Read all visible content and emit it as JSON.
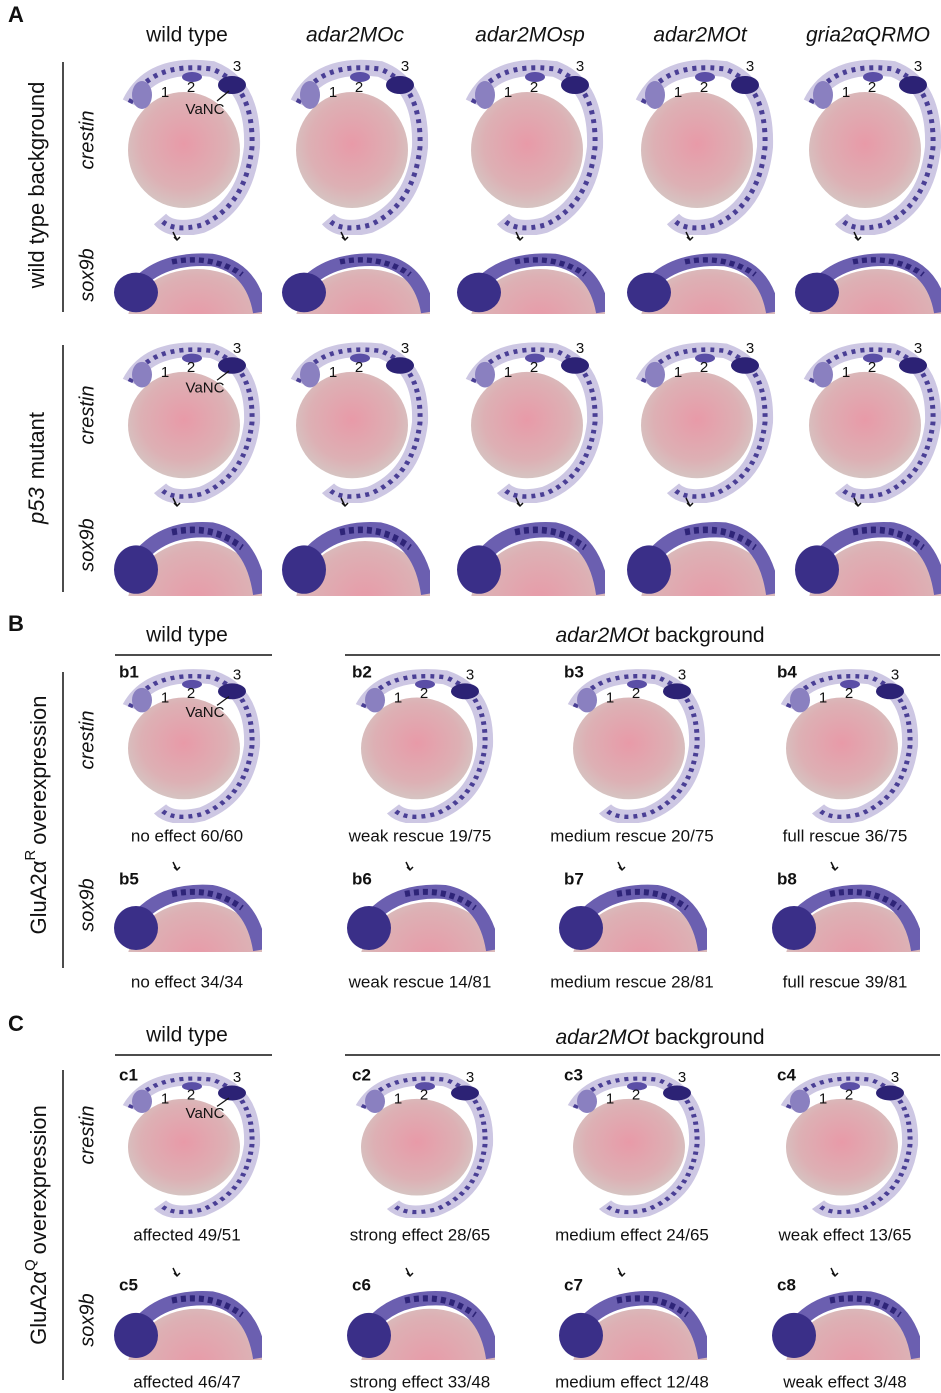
{
  "figure": {
    "markers": {
      "n1": "1",
      "n2": "2",
      "n3": "3",
      "vanc": "VaNC"
    },
    "panel_a": {
      "label": "A",
      "columns": [
        "wild type",
        "adar2MOc",
        "adar2MOsp",
        "adar2MOt",
        "gria2αQRMO"
      ],
      "group_1": "wild type background",
      "group_2": [
        "p53",
        "mutant"
      ],
      "rows": [
        "crestin",
        "sox9b"
      ]
    },
    "panel_b": {
      "label": "B",
      "left_header": "wild type",
      "right_header": [
        "adar2MOt",
        "background"
      ],
      "side": [
        "GluA2α",
        "R",
        "overexpression"
      ],
      "rows": [
        "crestin",
        "sox9b"
      ],
      "cells": [
        {
          "id": "b1",
          "caption": "no effect 60/60"
        },
        {
          "id": "b2",
          "caption": "weak rescue 19/75"
        },
        {
          "id": "b3",
          "caption": "medium rescue 20/75"
        },
        {
          "id": "b4",
          "caption": "full rescue 36/75"
        },
        {
          "id": "b5",
          "caption": "no effect 34/34"
        },
        {
          "id": "b6",
          "caption": "weak rescue 14/81"
        },
        {
          "id": "b7",
          "caption": "medium rescue 28/81"
        },
        {
          "id": "b8",
          "caption": "full rescue 39/81"
        }
      ]
    },
    "panel_c": {
      "label": "C",
      "left_header": "wild type",
      "right_header": [
        "adar2MOt",
        "background"
      ],
      "side": [
        "GluA2α",
        "Q",
        "overexpression"
      ],
      "rows": [
        "crestin",
        "sox9b"
      ],
      "cells": [
        {
          "id": "c1",
          "caption": "affected 49/51"
        },
        {
          "id": "c2",
          "caption": "strong effect 28/65"
        },
        {
          "id": "c3",
          "caption": "medium effect 24/65"
        },
        {
          "id": "c4",
          "caption": "weak effect 13/65"
        },
        {
          "id": "c5",
          "caption": "affected 46/47"
        },
        {
          "id": "c6",
          "caption": "strong effect 33/48"
        },
        {
          "id": "c7",
          "caption": "medium effect 12/48"
        },
        {
          "id": "c8",
          "caption": "weak effect 3/48"
        }
      ]
    }
  }
}
